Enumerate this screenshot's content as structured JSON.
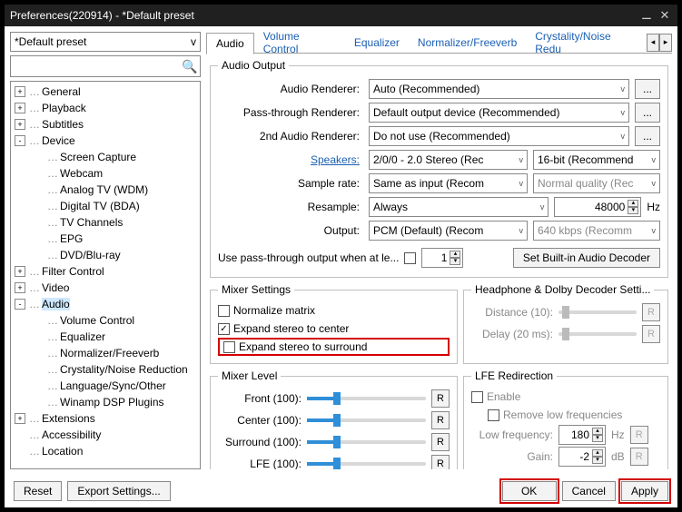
{
  "window": {
    "title": "Preferences(220914) - *Default preset"
  },
  "preset": {
    "value": "*Default preset"
  },
  "tree": {
    "items": [
      {
        "label": "General",
        "depth": 0,
        "toggle": "+"
      },
      {
        "label": "Playback",
        "depth": 0,
        "toggle": "+"
      },
      {
        "label": "Subtitles",
        "depth": 0,
        "toggle": "+"
      },
      {
        "label": "Device",
        "depth": 0,
        "toggle": "-"
      },
      {
        "label": "Screen Capture",
        "depth": 1,
        "toggle": ""
      },
      {
        "label": "Webcam",
        "depth": 1,
        "toggle": ""
      },
      {
        "label": "Analog TV (WDM)",
        "depth": 1,
        "toggle": ""
      },
      {
        "label": "Digital TV (BDA)",
        "depth": 1,
        "toggle": ""
      },
      {
        "label": "TV Channels",
        "depth": 1,
        "toggle": ""
      },
      {
        "label": "EPG",
        "depth": 1,
        "toggle": ""
      },
      {
        "label": "DVD/Blu-ray",
        "depth": 1,
        "toggle": ""
      },
      {
        "label": "Filter Control",
        "depth": 0,
        "toggle": "+"
      },
      {
        "label": "Video",
        "depth": 0,
        "toggle": "+"
      },
      {
        "label": "Audio",
        "depth": 0,
        "toggle": "-",
        "selected": true
      },
      {
        "label": "Volume Control",
        "depth": 1,
        "toggle": ""
      },
      {
        "label": "Equalizer",
        "depth": 1,
        "toggle": ""
      },
      {
        "label": "Normalizer/Freeverb",
        "depth": 1,
        "toggle": ""
      },
      {
        "label": "Crystality/Noise Reduction",
        "depth": 1,
        "toggle": ""
      },
      {
        "label": "Language/Sync/Other",
        "depth": 1,
        "toggle": ""
      },
      {
        "label": "Winamp DSP Plugins",
        "depth": 1,
        "toggle": ""
      },
      {
        "label": "Extensions",
        "depth": 0,
        "toggle": "+"
      },
      {
        "label": "Accessibility",
        "depth": 0,
        "toggle": ""
      },
      {
        "label": "Location",
        "depth": 0,
        "toggle": ""
      }
    ]
  },
  "tabs": {
    "items": [
      "Audio",
      "Volume Control",
      "Equalizer",
      "Normalizer/Freeverb",
      "Crystality/Noise Redu"
    ],
    "active": 0
  },
  "audio_output": {
    "legend": "Audio Output",
    "rows": {
      "renderer": {
        "label": "Audio Renderer:",
        "value": "Auto (Recommended)"
      },
      "passthru": {
        "label": "Pass-through Renderer:",
        "value": "Default output device (Recommended)"
      },
      "renderer2": {
        "label": "2nd Audio Renderer:",
        "value": "Do not use (Recommended)"
      },
      "speakers": {
        "label": "Speakers:",
        "value": "2/0/0 - 2.0 Stereo (Rec",
        "bits": "16-bit (Recommend"
      },
      "samplerate": {
        "label": "Sample rate:",
        "value": "Same as input (Recom",
        "quality": "Normal quality (Rec"
      },
      "resample": {
        "label": "Resample:",
        "value": "Always",
        "freq": "48000",
        "unit": "Hz"
      },
      "output": {
        "label": "Output:",
        "value": "PCM (Default) (Recom",
        "bitrate": "640 kbps (Recomm"
      }
    },
    "passthrough_label": "Use pass-through output when at le...",
    "passthrough_value": "1",
    "builtin_btn": "Set Built-in Audio Decoder"
  },
  "mixer": {
    "legend": "Mixer Settings",
    "normalize": "Normalize matrix",
    "expand_center": "Expand stereo to center",
    "expand_surround": "Expand stereo to surround"
  },
  "headphone": {
    "legend": "Headphone & Dolby Decoder Setti...",
    "distance": {
      "label": "Distance (10):"
    },
    "delay": {
      "label": "Delay (20 ms):"
    }
  },
  "mixer_level": {
    "legend": "Mixer Level",
    "channels": [
      {
        "label": "Front (100):",
        "pct": 22
      },
      {
        "label": "Center (100):",
        "pct": 22
      },
      {
        "label": "Surround (100):",
        "pct": 22
      },
      {
        "label": "LFE (100):",
        "pct": 22
      }
    ]
  },
  "lfe": {
    "legend": "LFE Redirection",
    "enable": "Enable",
    "remove": "Remove low frequencies",
    "lowfreq_label": "Low frequency:",
    "lowfreq_value": "180",
    "lowfreq_unit": "Hz",
    "gain_label": "Gain:",
    "gain_value": "-2",
    "gain_unit": "dB"
  },
  "footer": {
    "reset": "Reset",
    "export": "Export Settings...",
    "ok": "OK",
    "cancel": "Cancel",
    "apply": "Apply"
  },
  "colors": {
    "accent_red": "#d40000",
    "link": "#1a5fb4",
    "slider": "#2f8fd8"
  }
}
